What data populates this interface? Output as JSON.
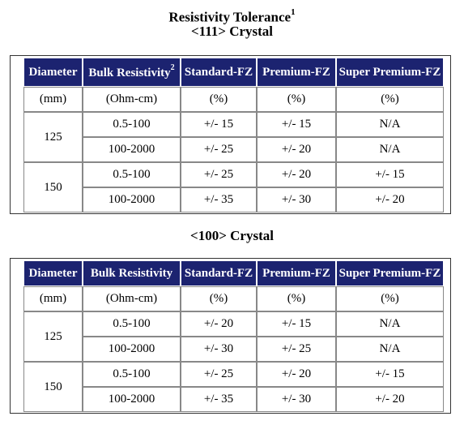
{
  "title": {
    "line1": "Resistivity Tolerance",
    "footnote": "1",
    "line2": "<111> Crystal"
  },
  "section2_title": "<100> Crystal",
  "headers_111": [
    "Diameter",
    "Bulk Resistivity",
    "Standard-FZ",
    "Premium-FZ",
    "Super Premium-FZ"
  ],
  "headers_111_footnote": "2",
  "headers_100": [
    "Diameter",
    "Bulk Resistivity",
    "Standard-FZ",
    "Premium-FZ",
    "Super Premium-FZ"
  ],
  "units": [
    "(mm)",
    "(Ohm-cm)",
    "(%)",
    "(%)",
    "(%)"
  ],
  "table_111": [
    {
      "diameter": "125",
      "rows": [
        [
          "0.5-100",
          "+/- 15",
          "+/- 15",
          "N/A"
        ],
        [
          "100-2000",
          "+/- 25",
          "+/- 20",
          "N/A"
        ]
      ]
    },
    {
      "diameter": "150",
      "rows": [
        [
          "0.5-100",
          "+/- 25",
          "+/- 20",
          "+/- 15"
        ],
        [
          "100-2000",
          "+/- 35",
          "+/- 30",
          "+/- 20"
        ]
      ]
    }
  ],
  "table_100": [
    {
      "diameter": "125",
      "rows": [
        [
          "0.5-100",
          "+/- 20",
          "+/- 15",
          "N/A"
        ],
        [
          "100-2000",
          "+/- 30",
          "+/- 25",
          "N/A"
        ]
      ]
    },
    {
      "diameter": "150",
      "rows": [
        [
          "0.5-100",
          "+/- 25",
          "+/- 20",
          "+/- 15"
        ],
        [
          "100-2000",
          "+/- 35",
          "+/- 30",
          "+/- 20"
        ]
      ]
    }
  ]
}
